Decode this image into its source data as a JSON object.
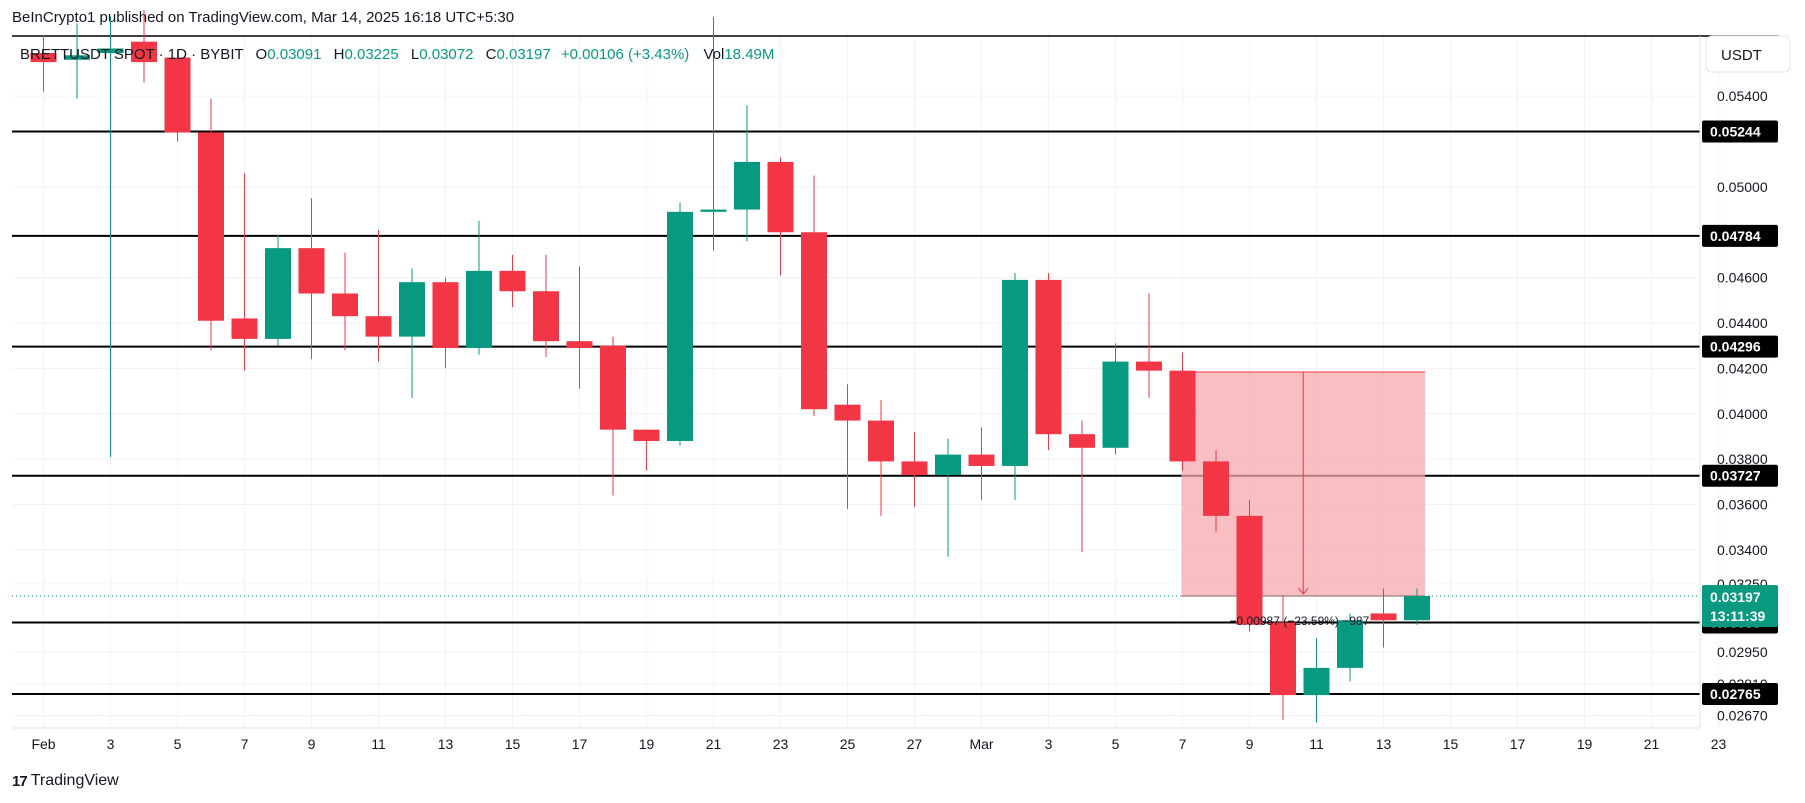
{
  "header": {
    "publisher": "BeInCrypto1 published on TradingView.com, Mar 14, 2025 16:18 UTC+5:30"
  },
  "legend": {
    "symbol": "BRETTUSDT SPOT · 1D · BYBIT",
    "open_label": "O",
    "open": "0.03091",
    "high_label": "H",
    "high": "0.03225",
    "low_label": "L",
    "low": "0.03072",
    "close_label": "C",
    "close": "0.03197",
    "change": "+0.00106 (+3.43%)",
    "vol_label": "Vol",
    "vol": "18.49M"
  },
  "currency_button": "USDT",
  "footer": {
    "logo": "17",
    "brand": "TradingView"
  },
  "colors": {
    "up": "#089981",
    "down": "#f23645",
    "measure_fill": "#f7a8ad",
    "hline": "#000000"
  },
  "chart_data": {
    "type": "candlestick",
    "x_tick_labels": [
      {
        "i": 0,
        "label": "Feb"
      },
      {
        "i": 2,
        "label": "3"
      },
      {
        "i": 4,
        "label": "5"
      },
      {
        "i": 6,
        "label": "7"
      },
      {
        "i": 8,
        "label": "9"
      },
      {
        "i": 10,
        "label": "11"
      },
      {
        "i": 12,
        "label": "13"
      },
      {
        "i": 14,
        "label": "15"
      },
      {
        "i": 16,
        "label": "17"
      },
      {
        "i": 18,
        "label": "19"
      },
      {
        "i": 20,
        "label": "21"
      },
      {
        "i": 22,
        "label": "23"
      },
      {
        "i": 24,
        "label": "25"
      },
      {
        "i": 26,
        "label": "27"
      },
      {
        "i": 28,
        "label": "Mar"
      },
      {
        "i": 30,
        "label": "3"
      },
      {
        "i": 32,
        "label": "5"
      },
      {
        "i": 34,
        "label": "7"
      },
      {
        "i": 36,
        "label": "9"
      },
      {
        "i": 38,
        "label": "11"
      },
      {
        "i": 40,
        "label": "13"
      },
      {
        "i": 42,
        "label": "15"
      },
      {
        "i": 44,
        "label": "17"
      },
      {
        "i": 46,
        "label": "19"
      },
      {
        "i": 48,
        "label": "21"
      },
      {
        "i": 50,
        "label": "23"
      }
    ],
    "y_ticks": [
      "0.05400",
      "0.05000",
      "0.04600",
      "0.04400",
      "0.04200",
      "0.04000",
      "0.03800",
      "0.03600",
      "0.03400",
      "0.03250",
      "0.02950",
      "0.02810",
      "0.02670"
    ],
    "ylim": [
      0.02615,
      0.05665
    ],
    "horizontal_levels": [
      "0.05244",
      "0.04784",
      "0.04296",
      "0.03727",
      "0.03080",
      "0.02765"
    ],
    "last_price": {
      "value": "0.03197",
      "countdown": "13:11:39"
    },
    "candles": [
      {
        "date": "Feb 1",
        "o": 0.0559,
        "h": 0.0567,
        "l": 0.0542,
        "c": 0.0555
      },
      {
        "date": "Feb 2",
        "o": 0.0556,
        "h": 0.0572,
        "l": 0.0539,
        "c": 0.0558
      },
      {
        "date": "Feb 3",
        "o": 0.0559,
        "h": 0.0575,
        "l": 0.0381,
        "c": 0.0561
      },
      {
        "date": "Feb 4",
        "o": 0.0564,
        "h": 0.0578,
        "l": 0.0546,
        "c": 0.0555
      },
      {
        "date": "Feb 5",
        "o": 0.0557,
        "h": 0.056,
        "l": 0.052,
        "c": 0.0524
      },
      {
        "date": "Feb 6",
        "o": 0.0524,
        "h": 0.0539,
        "l": 0.0428,
        "c": 0.0441
      },
      {
        "date": "Feb 7",
        "o": 0.0442,
        "h": 0.0506,
        "l": 0.0419,
        "c": 0.0433
      },
      {
        "date": "Feb 8",
        "o": 0.0433,
        "h": 0.0479,
        "l": 0.043,
        "c": 0.0473
      },
      {
        "date": "Feb 9",
        "o": 0.0473,
        "h": 0.0495,
        "l": 0.0424,
        "c": 0.0453
      },
      {
        "date": "Feb 10",
        "o": 0.0453,
        "h": 0.0471,
        "l": 0.0428,
        "c": 0.0443
      },
      {
        "date": "Feb 11",
        "o": 0.0443,
        "h": 0.0481,
        "l": 0.0423,
        "c": 0.0434
      },
      {
        "date": "Feb 12",
        "o": 0.0434,
        "h": 0.0464,
        "l": 0.0407,
        "c": 0.0458
      },
      {
        "date": "Feb 13",
        "o": 0.0458,
        "h": 0.046,
        "l": 0.042,
        "c": 0.0429
      },
      {
        "date": "Feb 14",
        "o": 0.0429,
        "h": 0.0485,
        "l": 0.0426,
        "c": 0.0463
      },
      {
        "date": "Feb 15",
        "o": 0.0463,
        "h": 0.047,
        "l": 0.0447,
        "c": 0.0454
      },
      {
        "date": "Feb 16",
        "o": 0.0454,
        "h": 0.047,
        "l": 0.0425,
        "c": 0.0432
      },
      {
        "date": "Feb 17",
        "o": 0.0432,
        "h": 0.0465,
        "l": 0.0411,
        "c": 0.0429
      },
      {
        "date": "Feb 18",
        "o": 0.043,
        "h": 0.0434,
        "l": 0.0364,
        "c": 0.0393
      },
      {
        "date": "Feb 19",
        "o": 0.0393,
        "h": 0.0393,
        "l": 0.0375,
        "c": 0.0388
      },
      {
        "date": "Feb 20",
        "o": 0.0388,
        "h": 0.0493,
        "l": 0.0386,
        "c": 0.0489
      },
      {
        "date": "Feb 21",
        "o": 0.0489,
        "h": 0.0575,
        "l": 0.0472,
        "c": 0.049
      },
      {
        "date": "Feb 22",
        "o": 0.049,
        "h": 0.0536,
        "l": 0.0476,
        "c": 0.0511
      },
      {
        "date": "Feb 23",
        "o": 0.0511,
        "h": 0.0513,
        "l": 0.0461,
        "c": 0.048
      },
      {
        "date": "Feb 24",
        "o": 0.048,
        "h": 0.0505,
        "l": 0.0399,
        "c": 0.0402
      },
      {
        "date": "Feb 25",
        "o": 0.0404,
        "h": 0.0413,
        "l": 0.0358,
        "c": 0.0397
      },
      {
        "date": "Feb 26",
        "o": 0.0397,
        "h": 0.0406,
        "l": 0.0355,
        "c": 0.0379
      },
      {
        "date": "Feb 27",
        "o": 0.0379,
        "h": 0.0392,
        "l": 0.0359,
        "c": 0.0373
      },
      {
        "date": "Feb 28",
        "o": 0.0373,
        "h": 0.0389,
        "l": 0.0337,
        "c": 0.0382
      },
      {
        "date": "Mar 1",
        "o": 0.0382,
        "h": 0.0394,
        "l": 0.0362,
        "c": 0.0377
      },
      {
        "date": "Mar 2",
        "o": 0.0377,
        "h": 0.0462,
        "l": 0.0362,
        "c": 0.0459
      },
      {
        "date": "Mar 3",
        "o": 0.0459,
        "h": 0.0462,
        "l": 0.0384,
        "c": 0.0391
      },
      {
        "date": "Mar 4",
        "o": 0.0391,
        "h": 0.0397,
        "l": 0.0339,
        "c": 0.0385
      },
      {
        "date": "Mar 5",
        "o": 0.0385,
        "h": 0.0431,
        "l": 0.0382,
        "c": 0.0423
      },
      {
        "date": "Mar 6",
        "o": 0.0423,
        "h": 0.0453,
        "l": 0.0407,
        "c": 0.0419
      },
      {
        "date": "Mar 7",
        "o": 0.0419,
        "h": 0.0427,
        "l": 0.0375,
        "c": 0.0379
      },
      {
        "date": "Mar 8",
        "o": 0.0379,
        "h": 0.0384,
        "l": 0.0348,
        "c": 0.0355
      },
      {
        "date": "Mar 9",
        "o": 0.0355,
        "h": 0.0362,
        "l": 0.0304,
        "c": 0.0307
      },
      {
        "date": "Mar 10",
        "o": 0.0308,
        "h": 0.032,
        "l": 0.0265,
        "c": 0.0276
      },
      {
        "date": "Mar 11",
        "o": 0.0276,
        "h": 0.0301,
        "l": 0.0264,
        "c": 0.0288
      },
      {
        "date": "Mar 12",
        "o": 0.0288,
        "h": 0.0312,
        "l": 0.0282,
        "c": 0.0309
      },
      {
        "date": "Mar 13",
        "o": 0.0312,
        "h": 0.0323,
        "l": 0.0297,
        "c": 0.0309
      },
      {
        "date": "Mar 14",
        "o": 0.0309,
        "h": 0.0323,
        "l": 0.0307,
        "c": 0.03197
      }
    ],
    "measure_box": {
      "start_date": "Mar 7",
      "end_date": "Mar 14",
      "top_price": 0.04184,
      "bottom_price": 0.03197,
      "label": "−0.00987 (−23.59%) −987"
    }
  }
}
